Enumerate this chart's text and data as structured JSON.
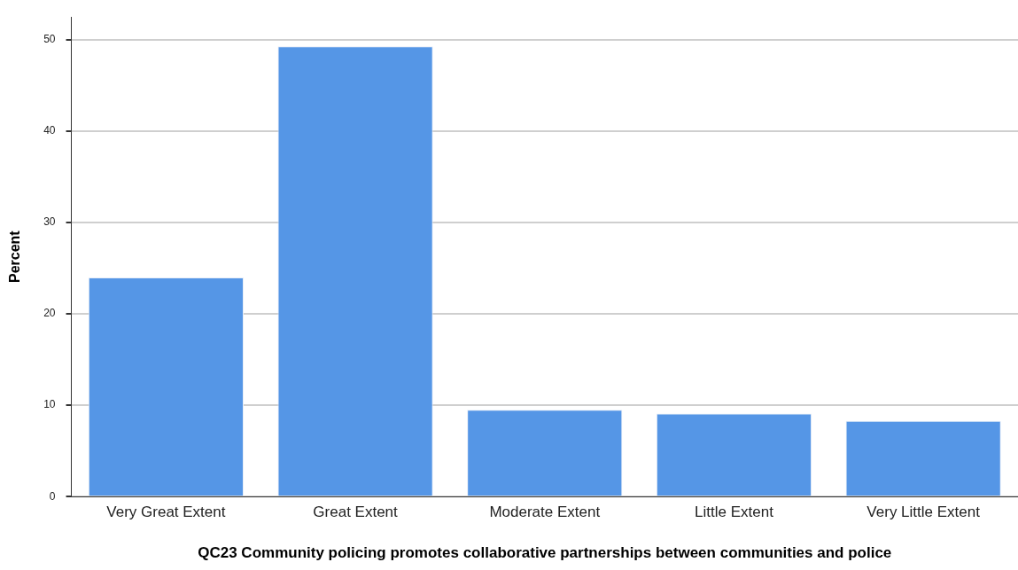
{
  "chart_data": {
    "type": "bar",
    "xlabel": "QC23 Community policing promotes collaborative partnerships between communities and police",
    "ylabel": "Percent",
    "categories": [
      "Very Great Extent",
      "Great Extent",
      "Moderate Extent",
      "Little Extent",
      "Very Little Extent"
    ],
    "values": [
      24.0,
      49.3,
      9.5,
      9.1,
      8.3
    ],
    "color": "#5596e6",
    "ylim": [
      0,
      52.5
    ],
    "yticks": [
      0,
      10,
      20,
      30,
      40,
      50
    ],
    "grid": "y",
    "legend": false
  }
}
